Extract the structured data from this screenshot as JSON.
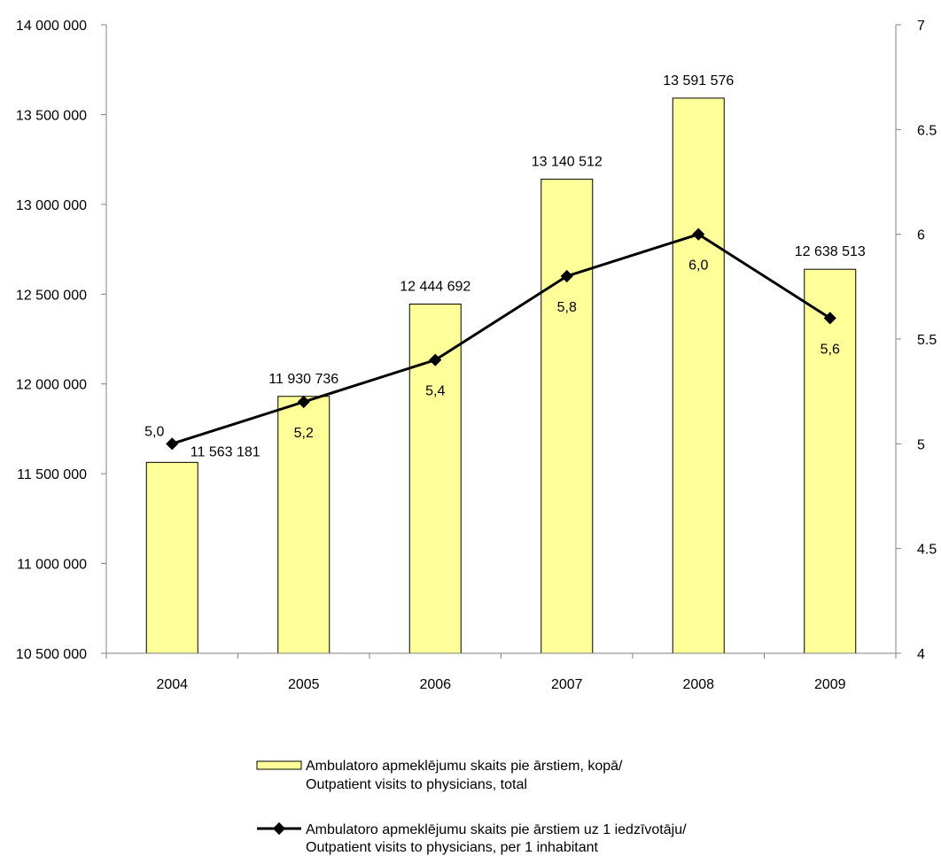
{
  "chart_data": {
    "type": "bar",
    "title": "",
    "categories": [
      "2004",
      "2005",
      "2006",
      "2007",
      "2008",
      "2009"
    ],
    "series": [
      {
        "name": "Ambulatoro apmeklējumu skaits pie ārstiem, kopā/ Outpatient visits to physicians, total",
        "name_lines": [
          "Ambulatoro apmeklējumu skaits pie ārstiem, kopā/",
          "Outpatient visits to physicians, total"
        ],
        "type": "bar",
        "axis": "left",
        "color": "#ffff99",
        "values": [
          11563181,
          11930736,
          12444692,
          13140512,
          13591576,
          12638513
        ],
        "labels": [
          "11 563 181",
          "11 930 736",
          "12 444 692",
          "13 140 512",
          "13 591 576",
          "12 638 513"
        ]
      },
      {
        "name": "Ambulatoro apmeklējumu skaits pie ārstiem uz 1 iedzīvotāju/ Outpatient visits to physicians, per 1 inhabitant",
        "name_lines": [
          "Ambulatoro apmeklējumu skaits pie ārstiem uz 1 iedzīvotāju/",
          "Outpatient visits to physicians, per 1 inhabitant"
        ],
        "type": "line",
        "axis": "right",
        "color": "#000000",
        "values": [
          5.0,
          5.2,
          5.4,
          5.8,
          6.0,
          5.6
        ],
        "labels": [
          "5,0",
          "5,2",
          "5,4",
          "5,8",
          "6,0",
          "5,6"
        ]
      }
    ],
    "y_left": {
      "ylim": [
        10500000,
        14000000
      ],
      "ticks": [
        10500000,
        11000000,
        11500000,
        12000000,
        12500000,
        13000000,
        13500000,
        14000000
      ],
      "tick_labels": [
        "10 500 000",
        "11 000 000",
        "11 500 000",
        "12 000 000",
        "12 500 000",
        "13 000 000",
        "13 500 000",
        "14 000 000"
      ]
    },
    "y_right": {
      "ylim": [
        4,
        7
      ],
      "ticks": [
        4,
        4.5,
        5,
        5.5,
        6,
        6.5,
        7
      ],
      "tick_labels": [
        "4",
        "4.5",
        "5",
        "5.5",
        "6",
        "6.5",
        "7"
      ]
    },
    "grid": false,
    "legend_position": "bottom"
  }
}
